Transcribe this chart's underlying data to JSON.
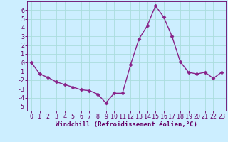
{
  "x": [
    0,
    1,
    2,
    3,
    4,
    5,
    6,
    7,
    8,
    9,
    10,
    11,
    12,
    13,
    14,
    15,
    16,
    17,
    18,
    19,
    20,
    21,
    22,
    23
  ],
  "y": [
    0.0,
    -1.3,
    -1.7,
    -2.2,
    -2.5,
    -2.8,
    -3.1,
    -3.2,
    -3.6,
    -4.6,
    -3.5,
    -3.5,
    -0.2,
    2.7,
    4.2,
    6.5,
    5.2,
    3.0,
    0.1,
    -1.1,
    -1.3,
    -1.1,
    -1.8,
    -1.1
  ],
  "line_color": "#882288",
  "marker": "D",
  "marker_size": 2.5,
  "bg_color": "#cceeff",
  "grid_color": "#aadddd",
  "xlabel": "Windchill (Refroidissement éolien,°C)",
  "xlim": [
    -0.5,
    23.5
  ],
  "ylim": [
    -5.5,
    7.0
  ],
  "yticks": [
    -5,
    -4,
    -3,
    -2,
    -1,
    0,
    1,
    2,
    3,
    4,
    5,
    6
  ],
  "xticks": [
    0,
    1,
    2,
    3,
    4,
    5,
    6,
    7,
    8,
    9,
    10,
    11,
    12,
    13,
    14,
    15,
    16,
    17,
    18,
    19,
    20,
    21,
    22,
    23
  ],
  "xlabel_fontsize": 6.5,
  "tick_fontsize": 6.0,
  "line_width": 1.0,
  "tick_color": "#660066",
  "spine_color": "#660066"
}
